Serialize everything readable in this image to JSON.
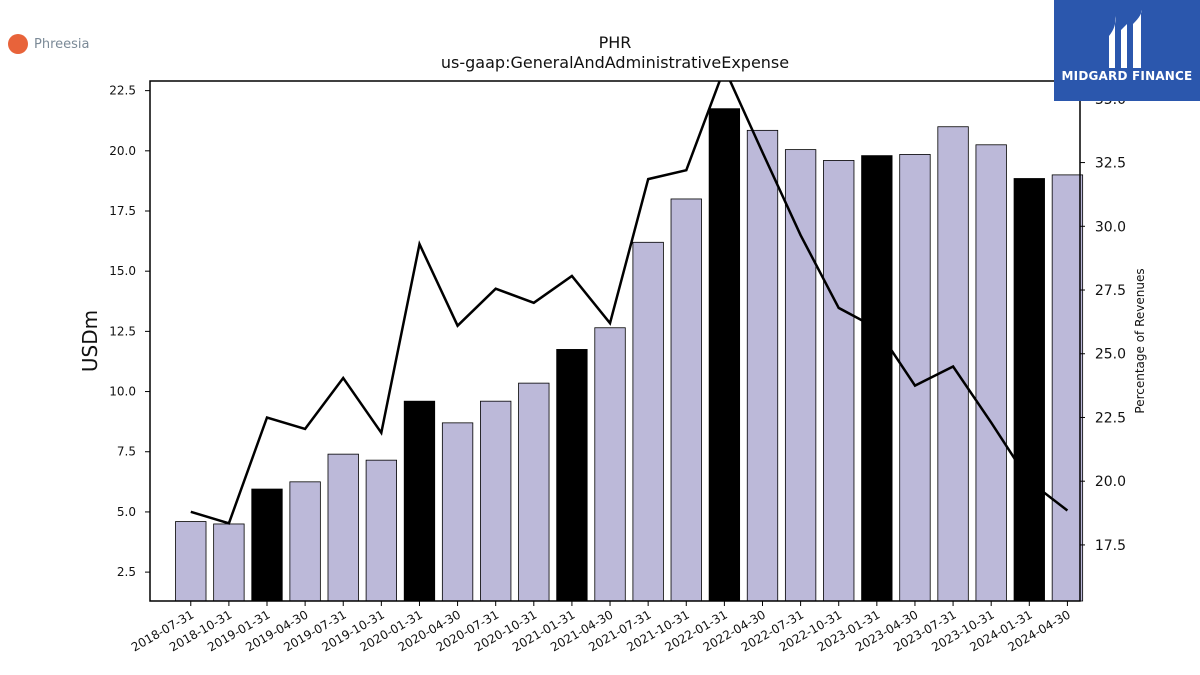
{
  "branding": {
    "company_name": "Phreesia",
    "company_dot_color": "#e8633a",
    "watermark_text": "MIDGARD FINANCE",
    "watermark_bg": "#2b57ad"
  },
  "chart_data": {
    "type": "bar",
    "title": "PHR",
    "subtitle": "us-gaap:GeneralAndAdministrativeExpense",
    "ylabel": "USDm",
    "y2label": "Percentage of Revenues",
    "ylim": [
      1.3,
      22.9
    ],
    "y2lim": [
      15.3,
      35.7
    ],
    "yticks": [
      2.5,
      5.0,
      7.5,
      10.0,
      12.5,
      15.0,
      17.5,
      20.0,
      22.5
    ],
    "y2ticks": [
      17.5,
      20.0,
      22.5,
      25.0,
      27.5,
      30.0,
      32.5,
      35.0
    ],
    "categories": [
      "2018-07-31",
      "2018-10-31",
      "2019-01-31",
      "2019-04-30",
      "2019-07-31",
      "2019-10-31",
      "2020-01-31",
      "2020-04-30",
      "2020-07-31",
      "2020-10-31",
      "2021-01-31",
      "2021-04-30",
      "2021-07-31",
      "2021-10-31",
      "2022-01-31",
      "2022-04-30",
      "2022-07-31",
      "2022-10-31",
      "2023-01-31",
      "2023-04-30",
      "2023-07-31",
      "2023-10-31",
      "2024-01-31",
      "2024-04-30"
    ],
    "series": [
      {
        "kind": "bar",
        "values": [
          4.6,
          4.5,
          5.95,
          6.25,
          7.4,
          7.15,
          9.6,
          8.7,
          9.6,
          10.35,
          11.75,
          12.65,
          16.2,
          18.0,
          21.75,
          20.85,
          20.05,
          19.6,
          19.8,
          19.85,
          21.0,
          20.25,
          18.85,
          19.0
        ],
        "color": "#bcb9d9",
        "highlight_color": "#000000",
        "highlight_indices": [
          2,
          6,
          10,
          14,
          18,
          22
        ]
      },
      {
        "kind": "line",
        "axis": "right",
        "values": [
          18.8,
          18.35,
          22.5,
          22.05,
          24.05,
          21.9,
          29.3,
          26.1,
          27.55,
          27.0,
          28.05,
          26.2,
          31.85,
          32.2,
          36.2,
          32.9,
          29.65,
          26.8,
          26.0,
          23.75,
          24.5,
          22.3,
          20.0,
          18.85
        ],
        "color": "#000000"
      }
    ],
    "grid": false
  }
}
